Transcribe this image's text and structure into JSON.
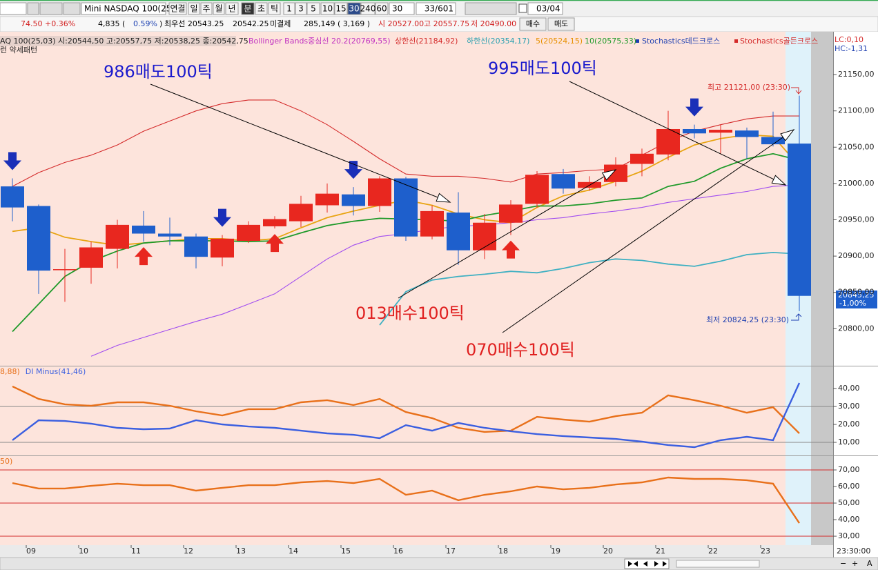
{
  "toolbar": {
    "symbol": "Mini NASDAQ 100(25.0",
    "periods": [
      "연결",
      "일",
      "주",
      "월",
      "년",
      "분",
      "초",
      "틱"
    ],
    "intervals": [
      "1",
      "3",
      "5",
      "10",
      "15",
      "30",
      "240",
      "60"
    ],
    "count": "30",
    "position": "33/601",
    "date": "03/04"
  },
  "info_bar": {
    "change": "74.50",
    "change_pct": "+0.36%",
    "volume": "4,835 (",
    "volume_pct": "0.59%",
    "volume_close": ")",
    "best_ask": "최우선 20543.25",
    "best_bid": "20542.25",
    "open_interest_label": "미결제",
    "open_interest": "285,149 ( 3,169 )",
    "open": "시 20527.00",
    "high": "고 20557.75",
    "low": "저 20490.00",
    "buy": "매수",
    "sell": "매도"
  },
  "legend": {
    "ohlc": "AQ 100(25,03) 시:20544,50 고:20557,75 저:20538,25 종:20542,75",
    "bollinger": "Bollinger Bands중심선 20.2(20769,55)",
    "upper": "상한선(21184,92)",
    "lower": "하한선(20354,17)",
    "ma5": "5(20524,15)",
    "ma10": "10(20575,33)",
    "stoch_dead": "Stochastics데드크로스",
    "stoch_golden": "Stochastics골든크로스",
    "lc": "LC:0,10",
    "hc": "HC:-1,31",
    "pattern": "런  약세패턴"
  },
  "chart": {
    "ylim": [
      20749,
      21209
    ],
    "yticks": [
      {
        "value": 21150,
        "label": "21150,00"
      },
      {
        "value": 21100,
        "label": "21100,00"
      },
      {
        "value": 21050,
        "label": "21050,00"
      },
      {
        "value": 21000,
        "label": "21000,00"
      },
      {
        "value": 20950,
        "label": "20950,00"
      },
      {
        "value": 20900,
        "label": "20900,00"
      },
      {
        "value": 20850,
        "label": "20850,00"
      },
      {
        "value": 20800,
        "label": "20800,00"
      }
    ],
    "up_color": "#e8271f",
    "down_color": "#1e5fcc",
    "candles": [
      {
        "open": 20996,
        "high": 21007,
        "low": 20948,
        "close": 20967
      },
      {
        "open": 20969,
        "high": 20971,
        "low": 20848,
        "close": 20880
      },
      {
        "open": 20881,
        "high": 20910,
        "low": 20837,
        "close": 20882
      },
      {
        "open": 20884,
        "high": 20920,
        "low": 20862,
        "close": 20912
      },
      {
        "open": 20910,
        "high": 20950,
        "low": 20883,
        "close": 20943
      },
      {
        "open": 20942,
        "high": 20962,
        "low": 20920,
        "close": 20931
      },
      {
        "open": 20931,
        "high": 20953,
        "low": 20915,
        "close": 20927
      },
      {
        "open": 20927,
        "high": 20931,
        "low": 20883,
        "close": 20899
      },
      {
        "open": 20898,
        "high": 20929,
        "low": 20886,
        "close": 20924
      },
      {
        "open": 20921,
        "high": 20948,
        "low": 20918,
        "close": 20943
      },
      {
        "open": 20941,
        "high": 20955,
        "low": 20938,
        "close": 20951
      },
      {
        "open": 20948,
        "high": 20983,
        "low": 20940,
        "close": 20972
      },
      {
        "open": 20970,
        "high": 21000,
        "low": 20960,
        "close": 20986
      },
      {
        "open": 20985,
        "high": 20995,
        "low": 20956,
        "close": 20969
      },
      {
        "open": 20969,
        "high": 21010,
        "low": 20961,
        "close": 21007
      },
      {
        "open": 21007,
        "high": 21009,
        "low": 20921,
        "close": 20927
      },
      {
        "open": 20927,
        "high": 20970,
        "low": 20923,
        "close": 20962
      },
      {
        "open": 20960,
        "high": 20988,
        "low": 20888,
        "close": 20908
      },
      {
        "open": 20908,
        "high": 20958,
        "low": 20896,
        "close": 20946
      },
      {
        "open": 20946,
        "high": 20977,
        "low": 20929,
        "close": 20971
      },
      {
        "open": 20972,
        "high": 21017,
        "low": 20967,
        "close": 21012
      },
      {
        "open": 21013,
        "high": 21020,
        "low": 20986,
        "close": 20993
      },
      {
        "open": 20994,
        "high": 21010,
        "low": 20990,
        "close": 21002
      },
      {
        "open": 21002,
        "high": 21036,
        "low": 20996,
        "close": 21026
      },
      {
        "open": 21027,
        "high": 21048,
        "low": 21010,
        "close": 21041
      },
      {
        "open": 21040,
        "high": 21100,
        "low": 21032,
        "close": 21075
      },
      {
        "open": 21075,
        "high": 21081,
        "low": 21062,
        "close": 21069
      },
      {
        "open": 21070,
        "high": 21081,
        "low": 21041,
        "close": 21074
      },
      {
        "open": 21073,
        "high": 21077,
        "low": 21034,
        "close": 21064
      },
      {
        "open": 21064,
        "high": 21099,
        "low": 21051,
        "close": 21054
      },
      {
        "open": 21055,
        "high": 21121,
        "low": 20824.25,
        "close": 20845.25
      }
    ],
    "lines": [
      {
        "color": "#d42a2a",
        "values": [
          20996,
          21015,
          21029,
          21039,
          21053,
          21072,
          21086,
          21100,
          21110,
          21115,
          21115,
          21100,
          21081,
          21058,
          21034,
          21013,
          21010,
          21010,
          21007,
          21002,
          21013,
          21015,
          21018,
          21020,
          21039,
          21058,
          21072,
          21081,
          21089,
          21093,
          21093
        ]
      },
      {
        "color": "#a04cf0",
        "values": [
          null,
          null,
          null,
          20762,
          20777,
          20788,
          20799,
          20810,
          20820,
          20834,
          20848,
          20872,
          20896,
          20915,
          20927,
          20931,
          20937,
          20941,
          20943,
          20946,
          20950,
          20953,
          20958,
          20962,
          20967,
          20974,
          20979,
          20984,
          20989,
          20996,
          20998
        ]
      },
      {
        "color": "#e8a412",
        "values": [
          20934,
          20939,
          20926,
          20920,
          20915,
          20918,
          20921,
          20924,
          20924,
          20921,
          20924,
          20939,
          20953,
          20962,
          20970,
          20977,
          20970,
          20958,
          20950,
          20946,
          20967,
          20983,
          20991,
          21003,
          21017,
          21036,
          21053,
          21062,
          21067,
          21065,
          21024
        ]
      },
      {
        "color": "#1f9a2a",
        "values": [
          20796,
          20834,
          20872,
          20893,
          20907,
          20918,
          20921,
          20921,
          20921,
          20920,
          20921,
          20932,
          20942,
          20948,
          20952,
          20951,
          20950,
          20948,
          20956,
          20962,
          20969,
          20969,
          20972,
          20977,
          20980,
          20996,
          21003,
          21021,
          21034,
          21041,
          21032
        ]
      },
      {
        "color": "#3fb0c2",
        "values": [
          null,
          null,
          null,
          null,
          null,
          null,
          null,
          null,
          null,
          null,
          null,
          null,
          null,
          null,
          20805,
          20851,
          20867,
          20872,
          20875,
          20879,
          20877,
          20883,
          20891,
          20896,
          20894,
          20889,
          20886,
          20893,
          20902,
          20905,
          20903
        ]
      }
    ],
    "sell_signals": [
      0,
      8,
      13,
      26
    ],
    "buy_signals": [
      5,
      10,
      19
    ],
    "high_label": "최고 21121,00 (23:30)",
    "low_label": "최저 20824,25 (23:30)",
    "last_price_label": "20845,25",
    "last_change_label": "-1,00%"
  },
  "annotations": [
    "986매도100틱",
    "995매도100틱",
    "013매수100틱",
    "070매수100틱"
  ],
  "di_panel": {
    "ylim": [
      2.7,
      52.7
    ],
    "yticks": [
      {
        "value": 40,
        "label": "40,00"
      },
      {
        "value": 30,
        "label": "30,00"
      },
      {
        "value": 20,
        "label": "20,00"
      },
      {
        "value": 10,
        "label": "10,00"
      }
    ],
    "levels": [
      30,
      10
    ],
    "series": [
      {
        "name": "8,88)",
        "color": "#e8701a",
        "values": [
          41.2,
          34.2,
          31.2,
          30.4,
          32.3,
          32.3,
          30.4,
          27.3,
          25,
          28.5,
          28.5,
          32.3,
          33.5,
          30.8,
          34.2,
          26.9,
          23.5,
          18.1,
          15.8,
          16.5,
          24.2,
          22.7,
          21.5,
          24.6,
          26.5,
          36.2,
          33.5,
          30.4,
          26.5,
          29.6,
          15
        ]
      },
      {
        "name": "DI Minus(41,46)",
        "color": "#3b5fe0",
        "values": [
          11.2,
          22.3,
          21.9,
          20.4,
          18.1,
          17.3,
          17.7,
          22.3,
          20,
          18.8,
          18.1,
          16.5,
          15,
          14.2,
          12.3,
          19.6,
          16.5,
          20.8,
          18.1,
          16.2,
          14.6,
          13.5,
          12.7,
          11.9,
          10.4,
          8.5,
          7.3,
          11.2,
          13.1,
          11.2,
          43.1
        ]
      }
    ]
  },
  "osc_panel": {
    "ylim": [
      24.6,
      78.75
    ],
    "yticks": [
      {
        "value": 70,
        "label": "70,00"
      },
      {
        "value": 60,
        "label": "60,00"
      },
      {
        "value": 50,
        "label": "50,00"
      },
      {
        "value": 40,
        "label": "40,00"
      },
      {
        "value": 30,
        "label": "30,00"
      }
    ],
    "levels": [
      70,
      50,
      30
    ],
    "series": [
      {
        "name": "50)",
        "color": "#e8701a",
        "values": [
          62.1,
          58.8,
          58.8,
          60.4,
          61.7,
          60.8,
          60.8,
          57.5,
          59.2,
          60.8,
          60.8,
          62.5,
          63.3,
          62.1,
          64.6,
          55,
          57.5,
          51.7,
          55,
          57.1,
          60,
          58.3,
          59.2,
          61.2,
          62.5,
          65.4,
          64.6,
          64.6,
          63.8,
          61.7,
          37.9
        ]
      }
    ]
  },
  "x_axis": {
    "labels": [
      "09",
      "10",
      "11",
      "12",
      "13",
      "14",
      "15",
      "16",
      "17",
      "18",
      "19",
      "20",
      "21",
      "22",
      "23"
    ],
    "time": "23:30:00"
  },
  "bottom_bar": {
    "zoom": "A"
  }
}
